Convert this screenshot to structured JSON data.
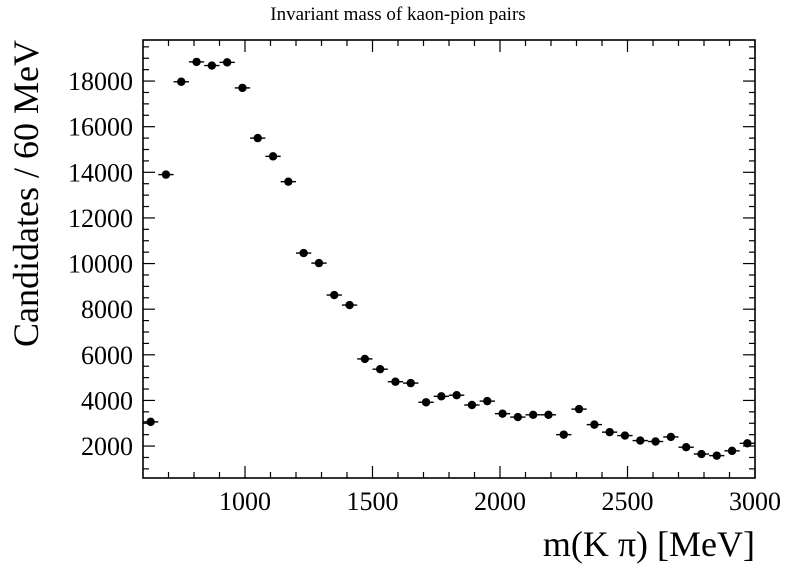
{
  "chart_data": {
    "type": "scatter",
    "title": "Invariant mass of kaon-pion pairs",
    "xlabel": "m(K π) [MeV]",
    "ylabel": "Candidates / 60 MeV",
    "xlim": [
      600,
      3000
    ],
    "ylim": [
      600,
      19800
    ],
    "x_ticks": [
      1000,
      1500,
      2000,
      2500,
      3000
    ],
    "y_ticks": [
      2000,
      4000,
      6000,
      8000,
      10000,
      12000,
      14000,
      16000,
      18000
    ],
    "bin_width": 60,
    "marker_color": "#000000",
    "grid": false,
    "legend": "none",
    "x": [
      630,
      690,
      750,
      810,
      870,
      930,
      990,
      1050,
      1110,
      1170,
      1230,
      1290,
      1350,
      1410,
      1470,
      1530,
      1590,
      1650,
      1710,
      1770,
      1830,
      1890,
      1950,
      2010,
      2070,
      2130,
      2190,
      2250,
      2310,
      2370,
      2430,
      2490,
      2550,
      2610,
      2670,
      2730,
      2790,
      2850,
      2910,
      2970
    ],
    "y": [
      3060,
      13900,
      17970,
      18840,
      18680,
      18820,
      17700,
      15500,
      14700,
      13590,
      10460,
      10020,
      8620,
      8180,
      5820,
      5370,
      4820,
      4760,
      3920,
      4180,
      4230,
      3800,
      3970,
      3420,
      3270,
      3370,
      3370,
      2500,
      3620,
      2940,
      2610,
      2460,
      2240,
      2200,
      2400,
      1950,
      1650,
      1580,
      1790,
      2120
    ]
  }
}
